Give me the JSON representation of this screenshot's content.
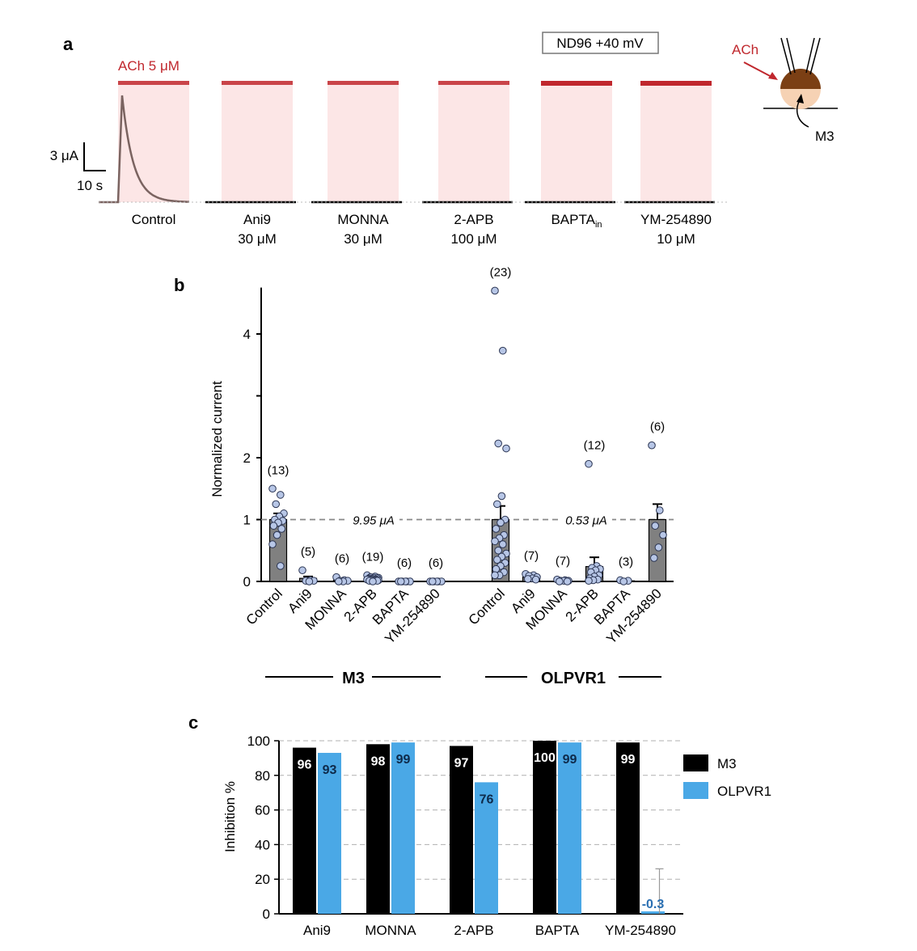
{
  "panel_a": {
    "label": "a",
    "condition_box": "ND96 +40 mV",
    "ach_label": "ACh 5 μM",
    "scale_y": "3 μA",
    "scale_x": "10 s",
    "schematic": {
      "ach": "ACh",
      "receptor": "M3"
    },
    "traces": [
      {
        "line1": "Control",
        "line2": ""
      },
      {
        "line1": "Ani9",
        "line2": "30 μM"
      },
      {
        "line1": "MONNA",
        "line2": "30 μM"
      },
      {
        "line1": "2-APB",
        "line2": "100 μM"
      },
      {
        "line1": "BAPTA",
        "sub": "in",
        "line2": ""
      },
      {
        "line1": "YM-254890",
        "line2": "10 μM"
      }
    ],
    "colors": {
      "ach_bar": "#c0272d",
      "ach_shade": "#fce6e6",
      "trace": "#7a6360"
    }
  },
  "panel_b": {
    "label": "b",
    "ylabel": "Normalized current",
    "group_labels": [
      "M3",
      "OLPVR1"
    ],
    "ref_labels": [
      "9.95 μA",
      "0.53 μA"
    ],
    "colors": {
      "bar": "#808080",
      "dot_fill": "#b7c6e6",
      "dot_edge": "#2b3553"
    }
  },
  "panel_c": {
    "label": "c",
    "ylabel": "Inhibition %",
    "legend": [
      {
        "name": "M3",
        "color": "#000000"
      },
      {
        "name": "OLPVR1",
        "color": "#4aa8e6"
      }
    ]
  },
  "chart_data": [
    {
      "type": "scatter",
      "title": "",
      "ylabel": "Normalized current",
      "ylim": [
        0,
        4.7
      ],
      "yticks": [
        0,
        1,
        2,
        3,
        4
      ],
      "ytick_labels": [
        "0",
        "1",
        "2",
        "",
        "4"
      ],
      "reference_line": 1,
      "groups": [
        {
          "name": "M3",
          "categories": [
            {
              "label": "Control",
              "n": "(13)",
              "mean": 1.0,
              "sem": 0.1,
              "points": [
                1.5,
                1.4,
                1.25,
                1.1,
                1.05,
                1.0,
                0.98,
                0.95,
                0.9,
                0.85,
                0.75,
                0.6,
                0.25
              ]
            },
            {
              "label": "Ani9",
              "n": "(5)",
              "mean": 0.05,
              "sem": 0.03,
              "points": [
                0.18,
                0.02,
                0.01,
                0.01,
                0.0
              ]
            },
            {
              "label": "MONNA",
              "n": "(6)",
              "mean": 0.02,
              "sem": 0.01,
              "points": [
                0.07,
                0.02,
                0.01,
                0.01,
                0.0,
                0.0
              ]
            },
            {
              "label": "2-APB",
              "n": "(19)",
              "mean": 0.04,
              "sem": 0.01,
              "points": [
                0.1,
                0.08,
                0.07,
                0.06,
                0.06,
                0.05,
                0.05,
                0.04,
                0.04,
                0.03,
                0.03,
                0.03,
                0.02,
                0.02,
                0.02,
                0.01,
                0.01,
                0.01,
                0.0
              ]
            },
            {
              "label": "BAPTA",
              "n": "(6)",
              "mean": 0.0,
              "sem": 0.0,
              "points": [
                0.0,
                0.0,
                0.0,
                0.0,
                0.0,
                0.0
              ]
            },
            {
              "label": "YM-254890",
              "n": "(6)",
              "mean": 0.0,
              "sem": 0.0,
              "points": [
                0.0,
                0.0,
                0.0,
                0.0,
                0.0,
                0.0
              ]
            }
          ]
        },
        {
          "name": "OLPVR1",
          "categories": [
            {
              "label": "Control",
              "n": "(23)",
              "mean": 1.0,
              "sem": 0.22,
              "points": [
                4.7,
                3.73,
                2.23,
                2.15,
                1.38,
                1.25,
                1.0,
                0.95,
                0.85,
                0.75,
                0.7,
                0.65,
                0.6,
                0.5,
                0.45,
                0.4,
                0.35,
                0.3,
                0.25,
                0.2,
                0.15,
                0.1,
                0.1
              ]
            },
            {
              "label": "Ani9",
              "n": "(7)",
              "mean": 0.07,
              "sem": 0.01,
              "points": [
                0.12,
                0.1,
                0.09,
                0.07,
                0.05,
                0.04,
                0.03
              ]
            },
            {
              "label": "MONNA",
              "n": "(7)",
              "mean": 0.01,
              "sem": 0.005,
              "points": [
                0.03,
                0.02,
                0.01,
                0.01,
                0.01,
                0.0,
                0.0
              ]
            },
            {
              "label": "2-APB",
              "n": "(12)",
              "mean": 0.24,
              "sem": 0.15,
              "points": [
                1.9,
                0.25,
                0.22,
                0.2,
                0.18,
                0.15,
                0.1,
                0.08,
                0.05,
                0.03,
                0.02,
                0.01
              ]
            },
            {
              "label": "BAPTA",
              "n": "(3)",
              "mean": 0.01,
              "sem": 0.005,
              "points": [
                0.02,
                0.01,
                0.0
              ]
            },
            {
              "label": "YM-254890",
              "n": "(6)",
              "mean": 1.0,
              "sem": 0.25,
              "points": [
                2.2,
                1.15,
                0.9,
                0.75,
                0.55,
                0.38
              ]
            }
          ]
        }
      ]
    },
    {
      "type": "bar",
      "title": "",
      "xlabel": "",
      "ylabel": "Inhibition %",
      "ylim": [
        0,
        100
      ],
      "yticks": [
        0,
        20,
        40,
        60,
        80,
        100
      ],
      "grid": true,
      "legend": "right",
      "categories": [
        "Ani9",
        "MONNA",
        "2-APB",
        "BAPTA",
        "YM-254890"
      ],
      "series": [
        {
          "name": "M3",
          "values": [
            96,
            98,
            97,
            100,
            99
          ],
          "labels": [
            "96",
            "98",
            "97",
            "100",
            "99"
          ]
        },
        {
          "name": "OLPVR1",
          "values": [
            93,
            99,
            76,
            99,
            -0.3
          ],
          "labels": [
            "93",
            "99",
            "76",
            "99",
            "-0.3"
          ],
          "error": [
            null,
            null,
            null,
            null,
            26
          ]
        }
      ]
    }
  ]
}
